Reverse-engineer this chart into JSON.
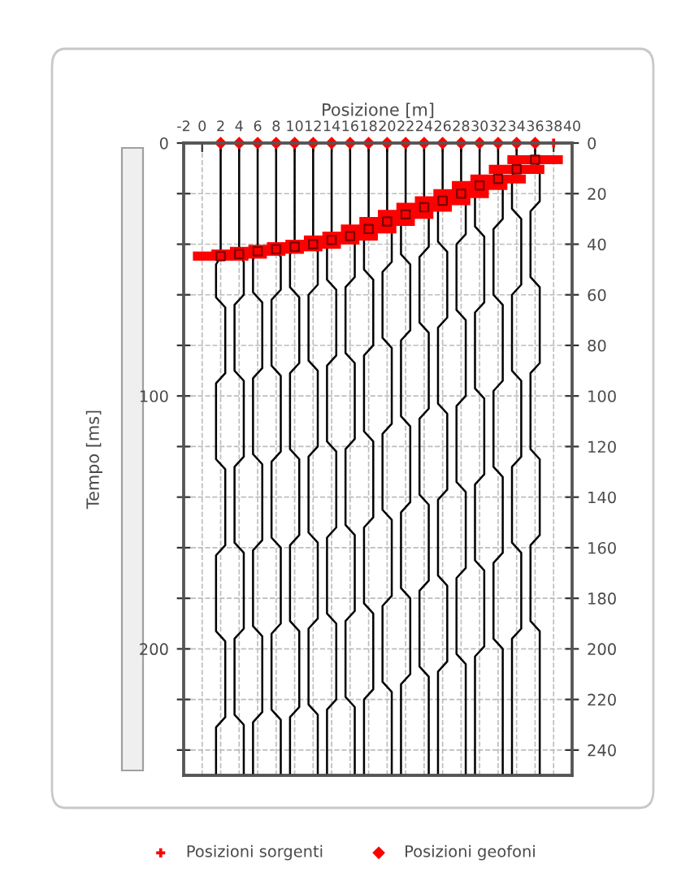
{
  "chart_data": {
    "type": "line",
    "xlabel": "Posizione [m]",
    "ylabel": "Tempo [ms]",
    "xlim": [
      -2,
      40
    ],
    "xticks": [
      -2,
      0,
      2,
      4,
      6,
      8,
      10,
      12,
      14,
      16,
      18,
      20,
      22,
      24,
      26,
      28,
      30,
      32,
      34,
      36,
      38,
      40
    ],
    "ylim": [
      250,
      0
    ],
    "yticks": [
      0,
      {
        "value": 20,
        "label": null
      },
      {
        "value": 40,
        "label": null
      },
      {
        "value": 60,
        "label": null
      },
      {
        "value": 80,
        "label": null
      },
      100,
      {
        "value": 120,
        "label": null
      },
      {
        "value": 140,
        "label": null
      },
      {
        "value": 160,
        "label": null
      },
      {
        "value": 180,
        "label": null
      },
      200,
      {
        "value": 220,
        "label": null
      },
      {
        "value": 240,
        "label": null
      }
    ],
    "y2lim": [
      250,
      0
    ],
    "y2ticks": [
      0,
      20,
      40,
      60,
      80,
      100,
      120,
      140,
      160,
      180,
      200,
      220,
      240
    ],
    "grid": true,
    "legend": "bottom",
    "series": [
      {
        "color": "#000000",
        "x": [
          2,
          2,
          1.5,
          1.5,
          2.5,
          2.5,
          1.5,
          1.5,
          2.5,
          2.5,
          1.5,
          1.5,
          2.5,
          2.5,
          1.5,
          1.5
        ],
        "values": [
          0,
          45,
          48,
          61,
          65,
          91,
          95,
          125,
          129,
          159,
          163,
          193,
          197,
          227,
          231,
          250
        ]
      },
      {
        "color": "#000000",
        "x": [
          4,
          4,
          4.5,
          4.5,
          3.5,
          3.5,
          4.5,
          4.5,
          3.5,
          3.5,
          4.5,
          4.5,
          3.5,
          3.5,
          4.5,
          4.5
        ],
        "values": [
          0,
          44,
          47,
          60,
          64,
          90,
          94,
          124,
          128,
          158,
          162,
          192,
          196,
          226,
          230,
          250
        ]
      },
      {
        "color": "#000000",
        "x": [
          6,
          6,
          5.5,
          5.5,
          6.5,
          6.5,
          5.5,
          5.5,
          6.5,
          6.5,
          5.5,
          5.5,
          6.5,
          6.5,
          5.5,
          5.5
        ],
        "values": [
          0,
          43,
          46,
          59,
          63,
          89,
          93,
          123,
          127,
          157,
          161,
          191,
          195,
          225,
          229,
          250
        ]
      },
      {
        "color": "#000000",
        "x": [
          8,
          8,
          8.5,
          8.5,
          7.5,
          7.5,
          8.5,
          8.5,
          7.5,
          7.5,
          8.5,
          8.5,
          7.5,
          7.5,
          8.5,
          8.5
        ],
        "values": [
          0,
          42,
          45,
          58,
          62,
          88,
          92,
          122,
          126,
          156,
          160,
          190,
          194,
          224,
          228,
          250
        ]
      },
      {
        "color": "#000000",
        "x": [
          10,
          10,
          9.5,
          9.5,
          10.5,
          10.5,
          9.5,
          9.5,
          10.5,
          10.5,
          9.5,
          9.5,
          10.5,
          10.5,
          9.5,
          9.5
        ],
        "values": [
          0,
          41,
          44,
          57,
          61,
          87,
          91,
          121,
          125,
          155,
          159,
          189,
          193,
          223,
          227,
          250
        ]
      },
      {
        "color": "#000000",
        "x": [
          12,
          12,
          12.5,
          12.5,
          11.5,
          11.5,
          12.5,
          12.5,
          11.5,
          11.5,
          12.5,
          12.5,
          11.5,
          11.5,
          12.5,
          12.5
        ],
        "values": [
          0,
          40,
          43,
          56,
          60,
          86,
          90,
          120,
          124,
          154,
          158,
          188,
          192,
          222,
          226,
          250
        ]
      },
      {
        "color": "#000000",
        "x": [
          14,
          14,
          13.5,
          13.5,
          14.5,
          14.5,
          13.5,
          13.5,
          14.5,
          14.5,
          13.5,
          13.5,
          14.5,
          14.5,
          13.5,
          13.5
        ],
        "values": [
          0,
          38,
          41,
          54,
          58,
          84,
          88,
          118,
          122,
          152,
          156,
          186,
          190,
          220,
          224,
          250
        ]
      },
      {
        "color": "#000000",
        "x": [
          16,
          16,
          16.5,
          16.5,
          15.5,
          15.5,
          16.5,
          16.5,
          15.5,
          15.5,
          16.5,
          16.5,
          15.5,
          15.5,
          16.5,
          16.5
        ],
        "values": [
          0,
          37,
          40,
          53,
          57,
          83,
          87,
          117,
          121,
          151,
          155,
          185,
          189,
          219,
          223,
          250
        ]
      },
      {
        "color": "#000000",
        "x": [
          18,
          18,
          17.5,
          17.5,
          18.5,
          18.5,
          17.5,
          17.5,
          18.5,
          18.5,
          17.5,
          17.5,
          18.5,
          18.5,
          17.5,
          17.5
        ],
        "values": [
          0,
          34,
          37,
          50,
          54,
          80,
          84,
          114,
          118,
          148,
          152,
          182,
          186,
          216,
          220,
          250
        ]
      },
      {
        "color": "#000000",
        "x": [
          20,
          20,
          20.5,
          20.5,
          19.5,
          19.5,
          20.5,
          20.5,
          19.5,
          19.5,
          20.5,
          20.5,
          19.5,
          19.5,
          20.5,
          20.5
        ],
        "values": [
          0,
          31,
          34,
          47,
          51,
          77,
          81,
          111,
          115,
          145,
          149,
          179,
          183,
          213,
          217,
          250
        ]
      },
      {
        "color": "#000000",
        "x": [
          22,
          22,
          21.5,
          21.5,
          22.5,
          22.5,
          21.5,
          21.5,
          22.5,
          22.5,
          21.5,
          21.5,
          22.5,
          22.5,
          21.5,
          21.5
        ],
        "values": [
          0,
          28,
          31,
          44,
          48,
          74,
          78,
          108,
          112,
          142,
          146,
          176,
          180,
          210,
          214,
          250
        ]
      },
      {
        "color": "#000000",
        "x": [
          24,
          24,
          24.5,
          24.5,
          23.5,
          23.5,
          24.5,
          24.5,
          23.5,
          23.5,
          24.5,
          24.5,
          23.5,
          23.5,
          24.5,
          24.5
        ],
        "values": [
          0,
          25,
          28,
          41,
          45,
          71,
          75,
          105,
          109,
          139,
          143,
          173,
          177,
          207,
          211,
          250
        ]
      },
      {
        "color": "#000000",
        "x": [
          26,
          26,
          25.5,
          25.5,
          26.5,
          26.5,
          25.5,
          25.5,
          26.5,
          26.5,
          25.5,
          25.5,
          26.5,
          26.5,
          25.5,
          25.5
        ],
        "values": [
          0,
          23,
          26,
          39,
          43,
          69,
          73,
          103,
          107,
          137,
          141,
          171,
          175,
          205,
          209,
          250
        ]
      },
      {
        "color": "#000000",
        "x": [
          28,
          28,
          28.5,
          28.5,
          27.5,
          27.5,
          28.5,
          28.5,
          27.5,
          27.5,
          28.5,
          28.5,
          27.5,
          27.5,
          28.5,
          28.5
        ],
        "values": [
          0,
          20,
          23,
          36,
          40,
          66,
          70,
          100,
          104,
          134,
          138,
          168,
          172,
          202,
          206,
          250
        ]
      },
      {
        "color": "#000000",
        "x": [
          30,
          30,
          29.5,
          29.5,
          30.5,
          30.5,
          29.5,
          29.5,
          30.5,
          30.5,
          29.5,
          29.5,
          30.5,
          30.5,
          29.5,
          29.5
        ],
        "values": [
          0,
          17,
          20,
          33,
          37,
          63,
          67,
          97,
          101,
          131,
          135,
          165,
          169,
          199,
          203,
          250
        ]
      },
      {
        "color": "#000000",
        "x": [
          32,
          32,
          32.5,
          32.5,
          31.5,
          31.5,
          32.5,
          32.5,
          31.5,
          31.5,
          32.5,
          32.5,
          31.5,
          31.5,
          32.5,
          32.5
        ],
        "values": [
          0,
          14,
          17,
          30,
          34,
          60,
          64,
          94,
          98,
          128,
          132,
          162,
          166,
          196,
          200,
          250
        ]
      },
      {
        "color": "#000000",
        "x": [
          34,
          34,
          33.5,
          33.5,
          34.5,
          34.5,
          33.5,
          33.5,
          34.5,
          34.5,
          33.5,
          33.5,
          34.5,
          34.5,
          33.5,
          33.5
        ],
        "values": [
          0,
          10,
          13,
          26,
          30,
          56,
          60,
          90,
          94,
          124,
          128,
          158,
          162,
          192,
          196,
          250
        ]
      },
      {
        "color": "#000000",
        "x": [
          36,
          36,
          36.5,
          36.5,
          35.5,
          35.5,
          36.5,
          36.5,
          35.5,
          35.5,
          36.5,
          36.5,
          35.5,
          35.5,
          36.5,
          36.5
        ],
        "values": [
          0,
          7,
          10,
          23,
          27,
          53,
          57,
          87,
          91,
          121,
          125,
          155,
          159,
          189,
          193,
          250
        ]
      },
      {
        "type": "scatter",
        "marker": "square",
        "color": "#ff0000",
        "x": [
          2,
          4,
          6,
          8,
          10,
          12,
          14,
          16,
          18,
          20,
          22,
          24,
          26,
          28,
          30,
          32,
          34,
          36
        ],
        "values": [
          44.7,
          43.9,
          42.8,
          42,
          41,
          40,
          38.3,
          36.8,
          34,
          31,
          28.2,
          25.4,
          22.8,
          20,
          16.8,
          14.2,
          10.4,
          6.6
        ],
        "xerrors": [
          3,
          3,
          3,
          3,
          3,
          3,
          3,
          3,
          3,
          3,
          3,
          3,
          3,
          3,
          3,
          3,
          3,
          3
        ]
      },
      {
        "type": "scatter",
        "name": "Posizioni sorgenti",
        "marker": "cross",
        "color": "#ff0000",
        "x": [
          38
        ],
        "values": [
          0
        ]
      },
      {
        "type": "scatter",
        "name": "Posizioni geofoni",
        "marker": "diamond",
        "color": "#ff0000",
        "x": [
          2,
          4,
          6,
          8,
          10,
          12,
          14,
          16,
          18,
          20,
          22,
          24,
          26,
          28,
          30,
          32,
          34,
          36
        ],
        "values": [
          0,
          0,
          0,
          0,
          0,
          0,
          0,
          0,
          0,
          0,
          0,
          0,
          0,
          0,
          0,
          0,
          0,
          0
        ]
      }
    ]
  }
}
